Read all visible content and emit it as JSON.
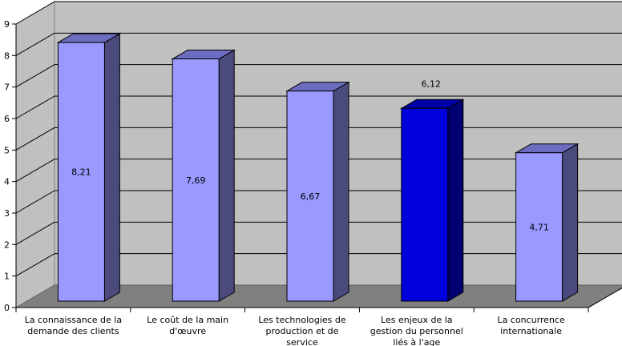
{
  "chart_data": {
    "type": "bar",
    "categories": [
      [
        "La connaissance de la",
        "demande des clients"
      ],
      [
        "Le coût de la main",
        "d'œuvre"
      ],
      [
        "Les technologies de",
        "production et de",
        "service"
      ],
      [
        "Les enjeux de la",
        "gestion du personnel",
        "liés à l'age"
      ],
      [
        "La concurrence",
        "internationale"
      ]
    ],
    "values": [
      8.21,
      7.69,
      6.67,
      6.12,
      4.71
    ],
    "data_labels": [
      "8,21",
      "7,69",
      "6,67",
      "6,12",
      "4,71"
    ],
    "highlight_index": 3,
    "y_ticks": [
      "0",
      "1",
      "2",
      "3",
      "4",
      "5",
      "6",
      "7",
      "8",
      "9"
    ],
    "ylim": [
      0,
      9
    ],
    "grid": true,
    "legend": "none",
    "three_d": true,
    "colors": {
      "bar_front": "#9999ff",
      "bar_side": "#4a4a7d",
      "bar_top": "#6c6cc0",
      "highlight_front": "#0000dd",
      "highlight_side": "#000070",
      "highlight_top": "#0000a8",
      "back_wall": "#c0c0c0",
      "side_wall": "#c0c0c0",
      "floor": "#808080",
      "grid": "#000000"
    }
  }
}
